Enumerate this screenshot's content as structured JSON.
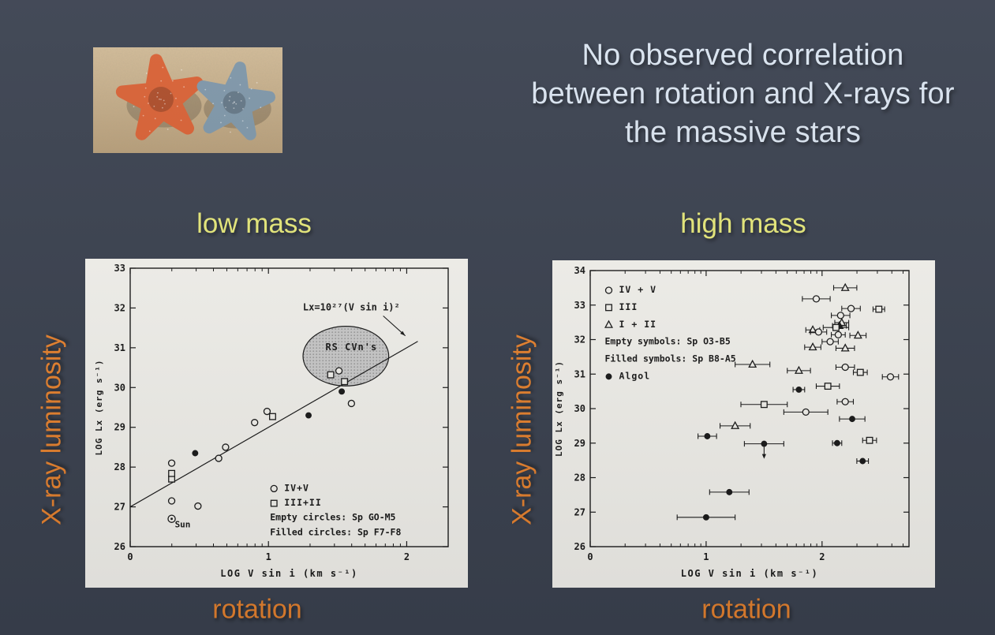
{
  "slide": {
    "background": "#3c4351",
    "title": {
      "lines": [
        "No observed correlation",
        "between rotation and X-rays for",
        "the massive stars"
      ],
      "color": "#dbe5f1"
    },
    "photo": {
      "description": "two starfish (orange left, blue-gray right) lying on sand",
      "sand_color": "#d3bc98",
      "sand_shadow_color": "#b89e78",
      "starfish_left_color": "#d96236",
      "starfish_right_color": "#7f97a9"
    },
    "labels": {
      "low_mass": {
        "text": "low mass",
        "color": "#e9eb7c"
      },
      "high_mass": {
        "text": "high mass",
        "color": "#e9eb7c"
      },
      "y_left": {
        "text": "X-ray luminosity",
        "color": "#e98430"
      },
      "y_right": {
        "text": "X-ray luminosity",
        "color": "#e98430"
      },
      "x_left": {
        "text": "rotation",
        "color": "#e98430"
      },
      "x_right": {
        "text": "rotation",
        "color": "#e98430"
      }
    }
  },
  "chart_data": [
    {
      "id": "low-mass-plot",
      "type": "scatter",
      "title": "",
      "xlabel": "LOG V sin i (km s⁻¹)",
      "ylabel": "LOG Lx (erg s⁻¹)",
      "xlim": [
        0,
        2.3
      ],
      "ylim": [
        26,
        33
      ],
      "xticks": [
        0,
        1,
        2
      ],
      "yticks": [
        26,
        27,
        28,
        29,
        30,
        31,
        32,
        33
      ],
      "grid": false,
      "paper_color": "#f6f5f0",
      "ink_color": "#1b1b1b",
      "line": {
        "x1": 0,
        "y1": 27,
        "x2": 2.08,
        "y2": 31.16,
        "label": "Lx=10²⁷(V sin i)²",
        "label_x": 1.6,
        "label_y": 32.02,
        "arrow": {
          "x1": 1.83,
          "y1": 31.8,
          "x2": 1.99,
          "y2": 31.3
        }
      },
      "ellipse": {
        "cx": 1.56,
        "cy": 30.79,
        "rx": 0.31,
        "ry": 0.75,
        "label": "RS CVn's",
        "label_x": 1.6,
        "label_y": 31.02,
        "fill": "#c6c6c6"
      },
      "legend": {
        "x": 1.04,
        "y": 27.4,
        "dy": 0.37,
        "rows": [
          {
            "symbol": "circle",
            "filled": false,
            "label": "IV+V"
          },
          {
            "symbol": "square",
            "filled": false,
            "label": "III+II"
          },
          {
            "label": "Empty circles: Sp GO-M5"
          },
          {
            "label": "Filled circles: Sp F7-F8"
          }
        ]
      },
      "points": [
        {
          "x": 0.3,
          "y": 26.7,
          "sym": "sun",
          "filled": false,
          "label": "Sun"
        },
        {
          "x": 0.3,
          "y": 27.15,
          "sym": "circle",
          "filled": false
        },
        {
          "x": 0.49,
          "y": 27.02,
          "sym": "circle",
          "filled": false
        },
        {
          "x": 0.3,
          "y": 27.7,
          "sym": "square",
          "filled": false
        },
        {
          "x": 0.3,
          "y": 27.84,
          "sym": "square",
          "filled": false
        },
        {
          "x": 0.3,
          "y": 28.1,
          "sym": "circle",
          "filled": false
        },
        {
          "x": 0.47,
          "y": 28.35,
          "sym": "circle",
          "filled": true
        },
        {
          "x": 0.64,
          "y": 28.22,
          "sym": "circle",
          "filled": false
        },
        {
          "x": 0.69,
          "y": 28.5,
          "sym": "circle",
          "filled": false
        },
        {
          "x": 0.9,
          "y": 29.12,
          "sym": "circle",
          "filled": false
        },
        {
          "x": 0.99,
          "y": 29.4,
          "sym": "circle",
          "filled": false
        },
        {
          "x": 1.03,
          "y": 29.27,
          "sym": "square",
          "filled": false
        },
        {
          "x": 1.29,
          "y": 29.3,
          "sym": "circle",
          "filled": true
        },
        {
          "x": 1.53,
          "y": 29.9,
          "sym": "circle",
          "filled": true
        },
        {
          "x": 1.6,
          "y": 29.6,
          "sym": "circle",
          "filled": false
        },
        {
          "x": 1.45,
          "y": 30.32,
          "sym": "square",
          "filled": false
        },
        {
          "x": 1.51,
          "y": 30.42,
          "sym": "circle",
          "filled": false
        },
        {
          "x": 1.55,
          "y": 30.15,
          "sym": "square",
          "filled": false
        }
      ]
    },
    {
      "id": "high-mass-plot",
      "type": "scatter",
      "title": "",
      "xlabel": "LOG V sin i (km s⁻¹)",
      "ylabel": "LOG Lx (erg s⁻¹)",
      "xlim": [
        0,
        2.75
      ],
      "ylim": [
        26,
        34
      ],
      "xticks": [
        0,
        1,
        2
      ],
      "yticks": [
        26,
        27,
        28,
        29,
        30,
        31,
        32,
        33,
        34
      ],
      "grid": false,
      "paper_color": "#f6f5f0",
      "ink_color": "#1b1b1b",
      "legend": {
        "x": 0.16,
        "y": 33.36,
        "dy": 0.5,
        "rows": [
          {
            "symbol": "circle",
            "filled": false,
            "label": "IV + V"
          },
          {
            "symbol": "square",
            "filled": false,
            "label": "III"
          },
          {
            "symbol": "triangle",
            "filled": false,
            "label": "I + II"
          },
          {
            "label": "Empty symbols: Sp O3-B5"
          },
          {
            "label": "Filled symbols: Sp B8-A5"
          },
          {
            "symbol": "circle",
            "filled": true,
            "label": "Algol"
          }
        ]
      },
      "points": [
        {
          "x": 2.2,
          "y": 33.5,
          "xerr": 0.1,
          "sym": "triangle",
          "filled": false
        },
        {
          "x": 1.95,
          "y": 33.18,
          "xerr": 0.12,
          "sym": "circle",
          "filled": false
        },
        {
          "x": 2.25,
          "y": 32.9,
          "xerr": 0.08,
          "sym": "circle",
          "filled": false
        },
        {
          "x": 2.49,
          "y": 32.88,
          "xerr": 0.05,
          "sym": "square",
          "filled": false
        },
        {
          "x": 2.16,
          "y": 32.7,
          "xerr": 0.08,
          "sym": "circle",
          "filled": false
        },
        {
          "x": 2.17,
          "y": 32.49,
          "xerr": 0.06,
          "sym": "triangle",
          "filled": false
        },
        {
          "x": 2.15,
          "y": 32.4,
          "xerr": 0.06,
          "sym": "triangle",
          "filled": true
        },
        {
          "x": 2.12,
          "y": 32.35,
          "xerr": 0.11,
          "sym": "square",
          "filled": false
        },
        {
          "x": 1.92,
          "y": 32.28,
          "xerr": 0.06,
          "sym": "triangle",
          "filled": false
        },
        {
          "x": 1.97,
          "y": 32.22,
          "xerr": 0.07,
          "sym": "circle",
          "filled": false
        },
        {
          "x": 2.14,
          "y": 32.14,
          "xerr": 0.06,
          "sym": "circle",
          "filled": false
        },
        {
          "x": 2.31,
          "y": 32.12,
          "xerr": 0.07,
          "sym": "triangle",
          "filled": false
        },
        {
          "x": 2.07,
          "y": 31.94,
          "xerr": 0.07,
          "sym": "circle",
          "filled": false
        },
        {
          "x": 1.92,
          "y": 31.78,
          "xerr": 0.07,
          "sym": "triangle",
          "filled": false
        },
        {
          "x": 2.2,
          "y": 31.75,
          "xerr": 0.08,
          "sym": "triangle",
          "filled": false
        },
        {
          "x": 1.4,
          "y": 31.28,
          "xerr": 0.15,
          "sym": "triangle",
          "filled": false
        },
        {
          "x": 2.2,
          "y": 31.2,
          "xerr": 0.08,
          "sym": "circle",
          "filled": false
        },
        {
          "x": 1.8,
          "y": 31.1,
          "xerr": 0.1,
          "sym": "triangle",
          "filled": false
        },
        {
          "x": 2.33,
          "y": 31.05,
          "xerr": 0.06,
          "sym": "square",
          "filled": false
        },
        {
          "x": 2.59,
          "y": 30.92,
          "xerr": 0.07,
          "sym": "circle",
          "filled": false
        },
        {
          "x": 2.05,
          "y": 30.65,
          "xerr": 0.1,
          "sym": "square",
          "filled": false
        },
        {
          "x": 1.8,
          "y": 30.55,
          "xerr": 0.05,
          "sym": "circle",
          "filled": true
        },
        {
          "x": 2.2,
          "y": 30.2,
          "xerr": 0.07,
          "sym": "circle",
          "filled": false
        },
        {
          "x": 1.5,
          "y": 30.12,
          "xerr": 0.2,
          "sym": "square",
          "filled": false
        },
        {
          "x": 1.86,
          "y": 29.9,
          "xerr": 0.19,
          "sym": "circle",
          "filled": false
        },
        {
          "x": 2.26,
          "y": 29.7,
          "xerr": 0.11,
          "sym": "circle",
          "filled": true
        },
        {
          "x": 1.25,
          "y": 29.5,
          "xerr": 0.13,
          "sym": "triangle",
          "filled": false
        },
        {
          "x": 1.01,
          "y": 29.2,
          "xerr": 0.08,
          "sym": "circle",
          "filled": true
        },
        {
          "x": 2.41,
          "y": 29.08,
          "xerr": 0.06,
          "sym": "square",
          "filled": false
        },
        {
          "x": 2.13,
          "y": 29.0,
          "xerr": 0.04,
          "sym": "circle",
          "filled": true
        },
        {
          "x": 1.5,
          "y": 28.98,
          "xerr": 0.17,
          "sym": "circle",
          "filled": true,
          "uplim": true
        },
        {
          "x": 2.35,
          "y": 28.48,
          "xerr": 0.05,
          "sym": "circle",
          "filled": true
        },
        {
          "x": 1.2,
          "y": 27.58,
          "xerr": 0.17,
          "sym": "circle",
          "filled": true
        },
        {
          "x": 1.0,
          "y": 26.85,
          "xerr": 0.25,
          "sym": "circle",
          "filled": true
        }
      ]
    }
  ]
}
